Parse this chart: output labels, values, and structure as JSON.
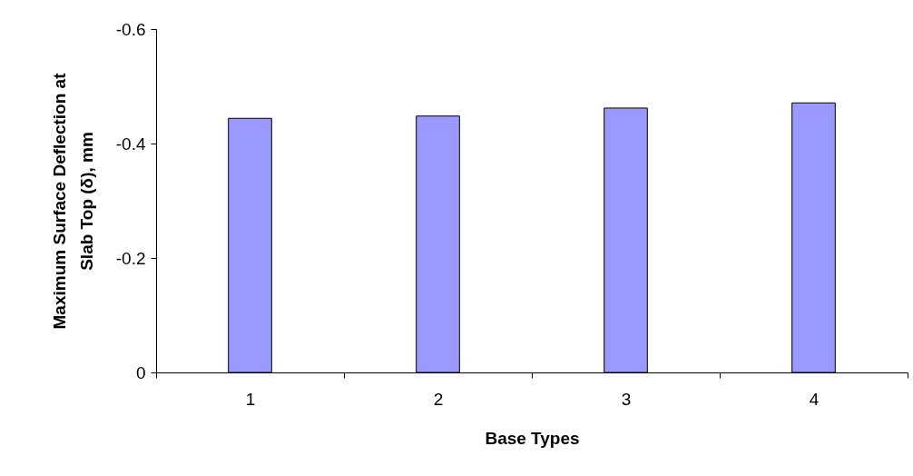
{
  "chart_data": {
    "type": "bar",
    "xlabel": "Base Types",
    "ylabel": "Maximum Surface Deflection at\nSlab Top (δ), mm",
    "categories": [
      "1",
      "2",
      "3",
      "4"
    ],
    "values": [
      -0.444,
      -0.448,
      -0.462,
      -0.471
    ],
    "color": "#9999ff",
    "ylim": [
      0,
      -0.6
    ],
    "yticks": [
      0,
      -0.2,
      -0.4,
      -0.6
    ],
    "grid": false,
    "legend": false
  }
}
